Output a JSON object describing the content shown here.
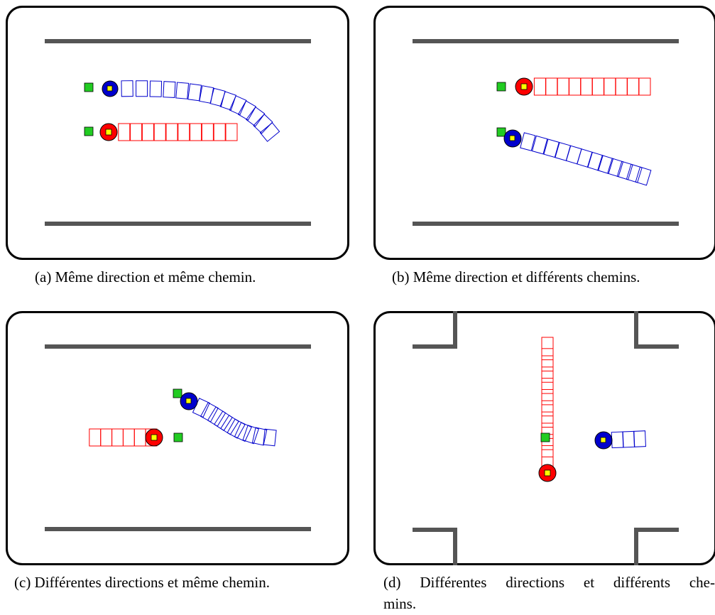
{
  "figure": {
    "captions": {
      "a": "(a) Même direction et même chemin.",
      "b": "(b) Même direction et différents chemins.",
      "c": "(c) Différentes directions et même chemin.",
      "d_line1": "(d) Différentes directions et différents che-",
      "d_line2": "mins."
    }
  },
  "colors": {
    "frame": "#000000",
    "wall": "#555555",
    "robot_red": "#ff0000",
    "robot_blue": "#0000cc",
    "robot_center": "#ffff00",
    "goal": "#22cc22",
    "background": "#ffffff"
  },
  "icons": {
    "goal_marker": "green-square-icon",
    "robot": "robot-disc-icon"
  }
}
